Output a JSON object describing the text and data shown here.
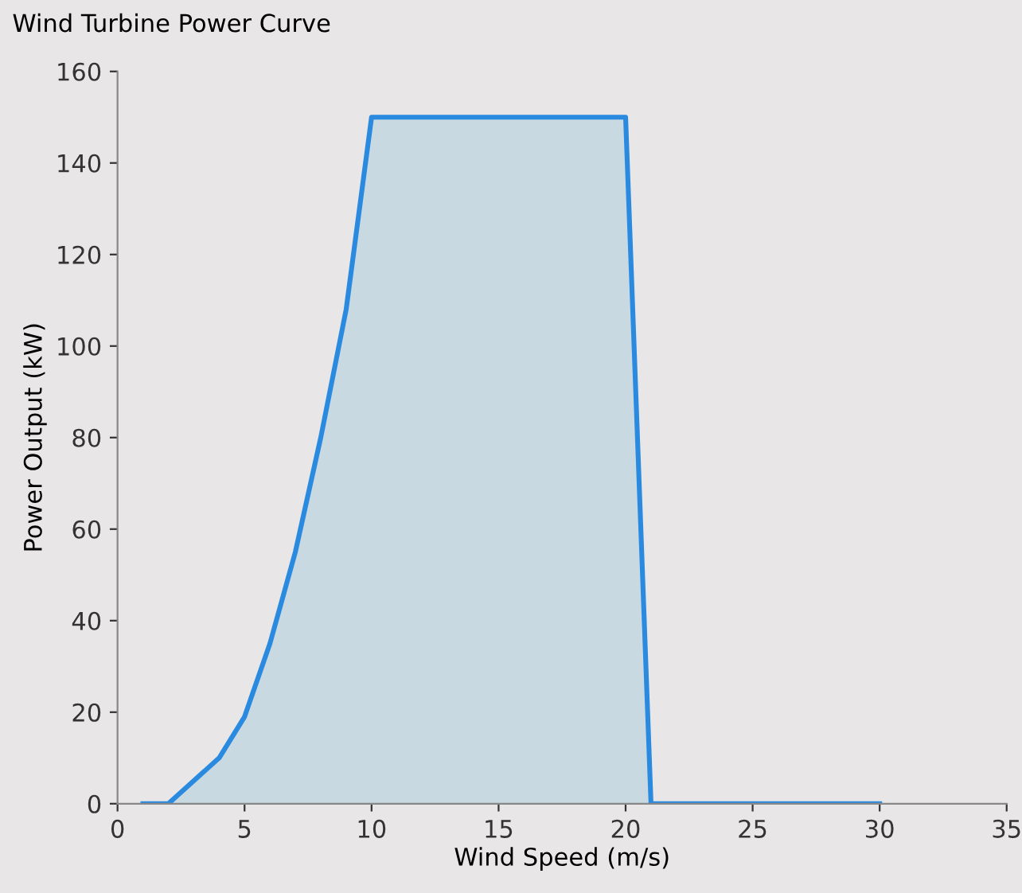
{
  "chart_data": {
    "type": "area",
    "title": "Wind Turbine Power Curve",
    "xlabel": "Wind Speed (m/s)",
    "ylabel": "Power Output (kW)",
    "x": [
      1,
      2,
      3,
      4,
      5,
      6,
      7,
      8,
      9,
      10,
      11,
      12,
      13,
      14,
      15,
      16,
      17,
      18,
      19,
      20,
      21,
      22,
      23,
      24,
      25,
      26,
      27,
      28,
      29,
      30
    ],
    "series": [
      {
        "color": "#2a8ae0",
        "values": [
          0,
          0,
          5,
          10,
          19,
          35,
          55,
          80,
          108,
          150,
          150,
          150,
          150,
          150,
          150,
          150,
          150,
          150,
          150,
          150,
          0,
          0,
          0,
          0,
          0,
          0,
          0,
          0,
          0,
          0
        ]
      }
    ],
    "xlim": [
      0,
      35
    ],
    "ylim": [
      0,
      160
    ],
    "xticks": [
      0,
      5,
      10,
      15,
      20,
      25,
      30,
      35
    ],
    "yticks": [
      0,
      20,
      40,
      60,
      80,
      100,
      120,
      140,
      160
    ],
    "grid": false,
    "legend": false
  }
}
